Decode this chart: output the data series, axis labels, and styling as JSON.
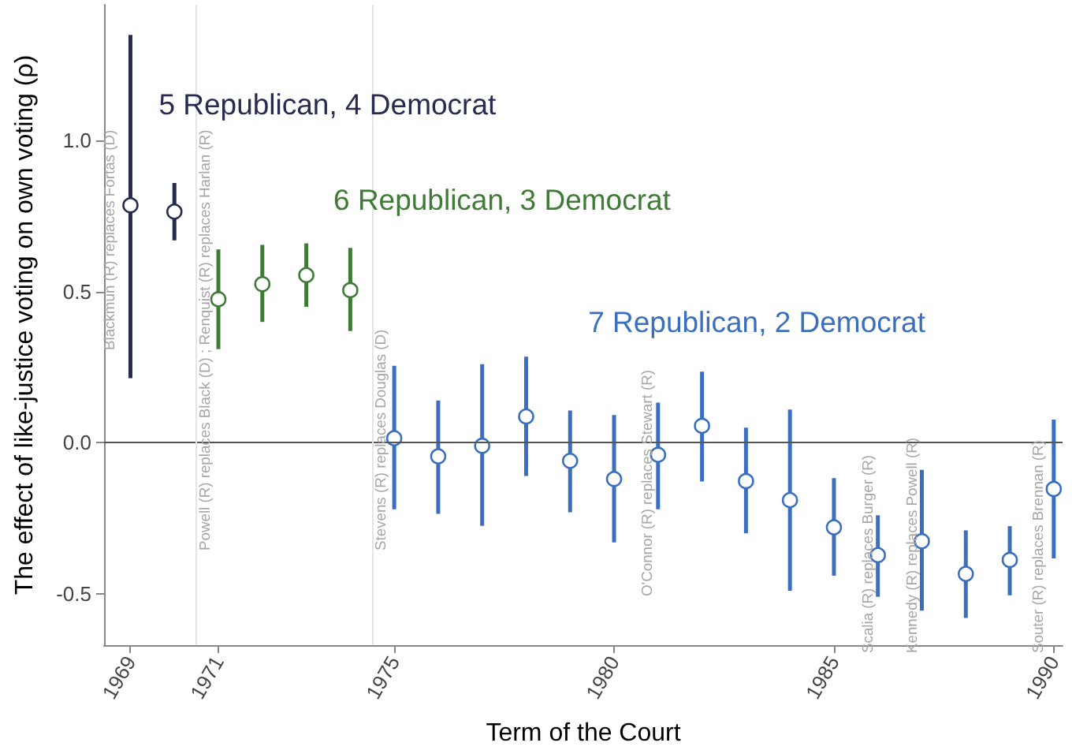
{
  "chart_data": {
    "type": "scatter",
    "xlabel": "Term of the Court",
    "ylabel": "The effect of like-justice voting on own voting (ρ)",
    "xlim": [
      1968.4,
      1990.2
    ],
    "xticks": [
      1969,
      1971,
      1975,
      1980,
      1985,
      1990
    ],
    "ylim": [
      -0.67,
      1.45
    ],
    "yticks": [
      -0.5,
      {
        "value": 0,
        "label": "0.0"
      },
      0.5,
      {
        "value": 1,
        "label": "1.0"
      }
    ],
    "grid": false,
    "legend": false,
    "marker": "circle",
    "series": [
      {
        "name": "5 Republican, 4 Democrat",
        "color": "#262b4f",
        "x": [
          1969,
          1970
        ],
        "values": [
          0.786,
          0.765
        ],
        "errors": [
          [
            0.214,
            1.35
          ],
          [
            0.67,
            0.86
          ]
        ]
      },
      {
        "name": "6 Republican, 3 Democrat",
        "color": "#3f7a36",
        "x": [
          1971,
          1972,
          1973,
          1974
        ],
        "values": [
          0.475,
          0.525,
          0.555,
          0.505
        ],
        "errors": [
          [
            0.31,
            0.64
          ],
          [
            0.4,
            0.655
          ],
          [
            0.45,
            0.66
          ],
          [
            0.37,
            0.645
          ]
        ]
      },
      {
        "name": "7 Republican, 2 Democrat",
        "color": "#3a6fc0",
        "x": [
          1975,
          1976,
          1977,
          1978,
          1979,
          1980,
          1981,
          1982,
          1983,
          1984,
          1985,
          1986,
          1987,
          1988,
          1989,
          1990
        ],
        "values": [
          0.015,
          -0.045,
          -0.01,
          0.087,
          -0.06,
          -0.12,
          -0.04,
          0.056,
          -0.127,
          -0.19,
          -0.28,
          -0.372,
          -0.326,
          -0.434,
          -0.388,
          -0.153
        ],
        "errors": [
          [
            -0.22,
            0.255
          ],
          [
            -0.235,
            0.14
          ],
          [
            -0.275,
            0.26
          ],
          [
            -0.11,
            0.285
          ],
          [
            -0.23,
            0.107
          ],
          [
            -0.33,
            0.092
          ],
          [
            -0.22,
            0.133
          ],
          [
            -0.128,
            0.235
          ],
          [
            -0.3,
            0.05
          ],
          [
            -0.49,
            0.11
          ],
          [
            -0.44,
            -0.117
          ],
          [
            -0.51,
            -0.24
          ],
          [
            -0.556,
            -0.09
          ],
          [
            -0.58,
            -0.29
          ],
          [
            -0.505,
            -0.276
          ],
          [
            -0.383,
            0.077
          ]
        ]
      }
    ],
    "ref_lines": [
      {
        "axis": "y",
        "value": 0,
        "color": "#555555"
      },
      {
        "axis": "x",
        "value": 1970.5,
        "color": "#e4e4e4",
        "label": "Powell (R) replaces Black (D) ; Renquist (R) replaces Harlan (R)"
      },
      {
        "axis": "x",
        "value": 1974.5,
        "color": "#e4e4e4",
        "label": "Stevens (R) replaces Douglas (D)"
      }
    ],
    "annotations": [
      "Blackmun (R) replaces Fortas (D)",
      "O'Connor (R) replaces Stewart (R)",
      "Scalia (R) replaces Burger (R)",
      "Kennedy (R) replaces Powell (R)",
      "Souter (R) replaces Brennan (R)"
    ]
  }
}
